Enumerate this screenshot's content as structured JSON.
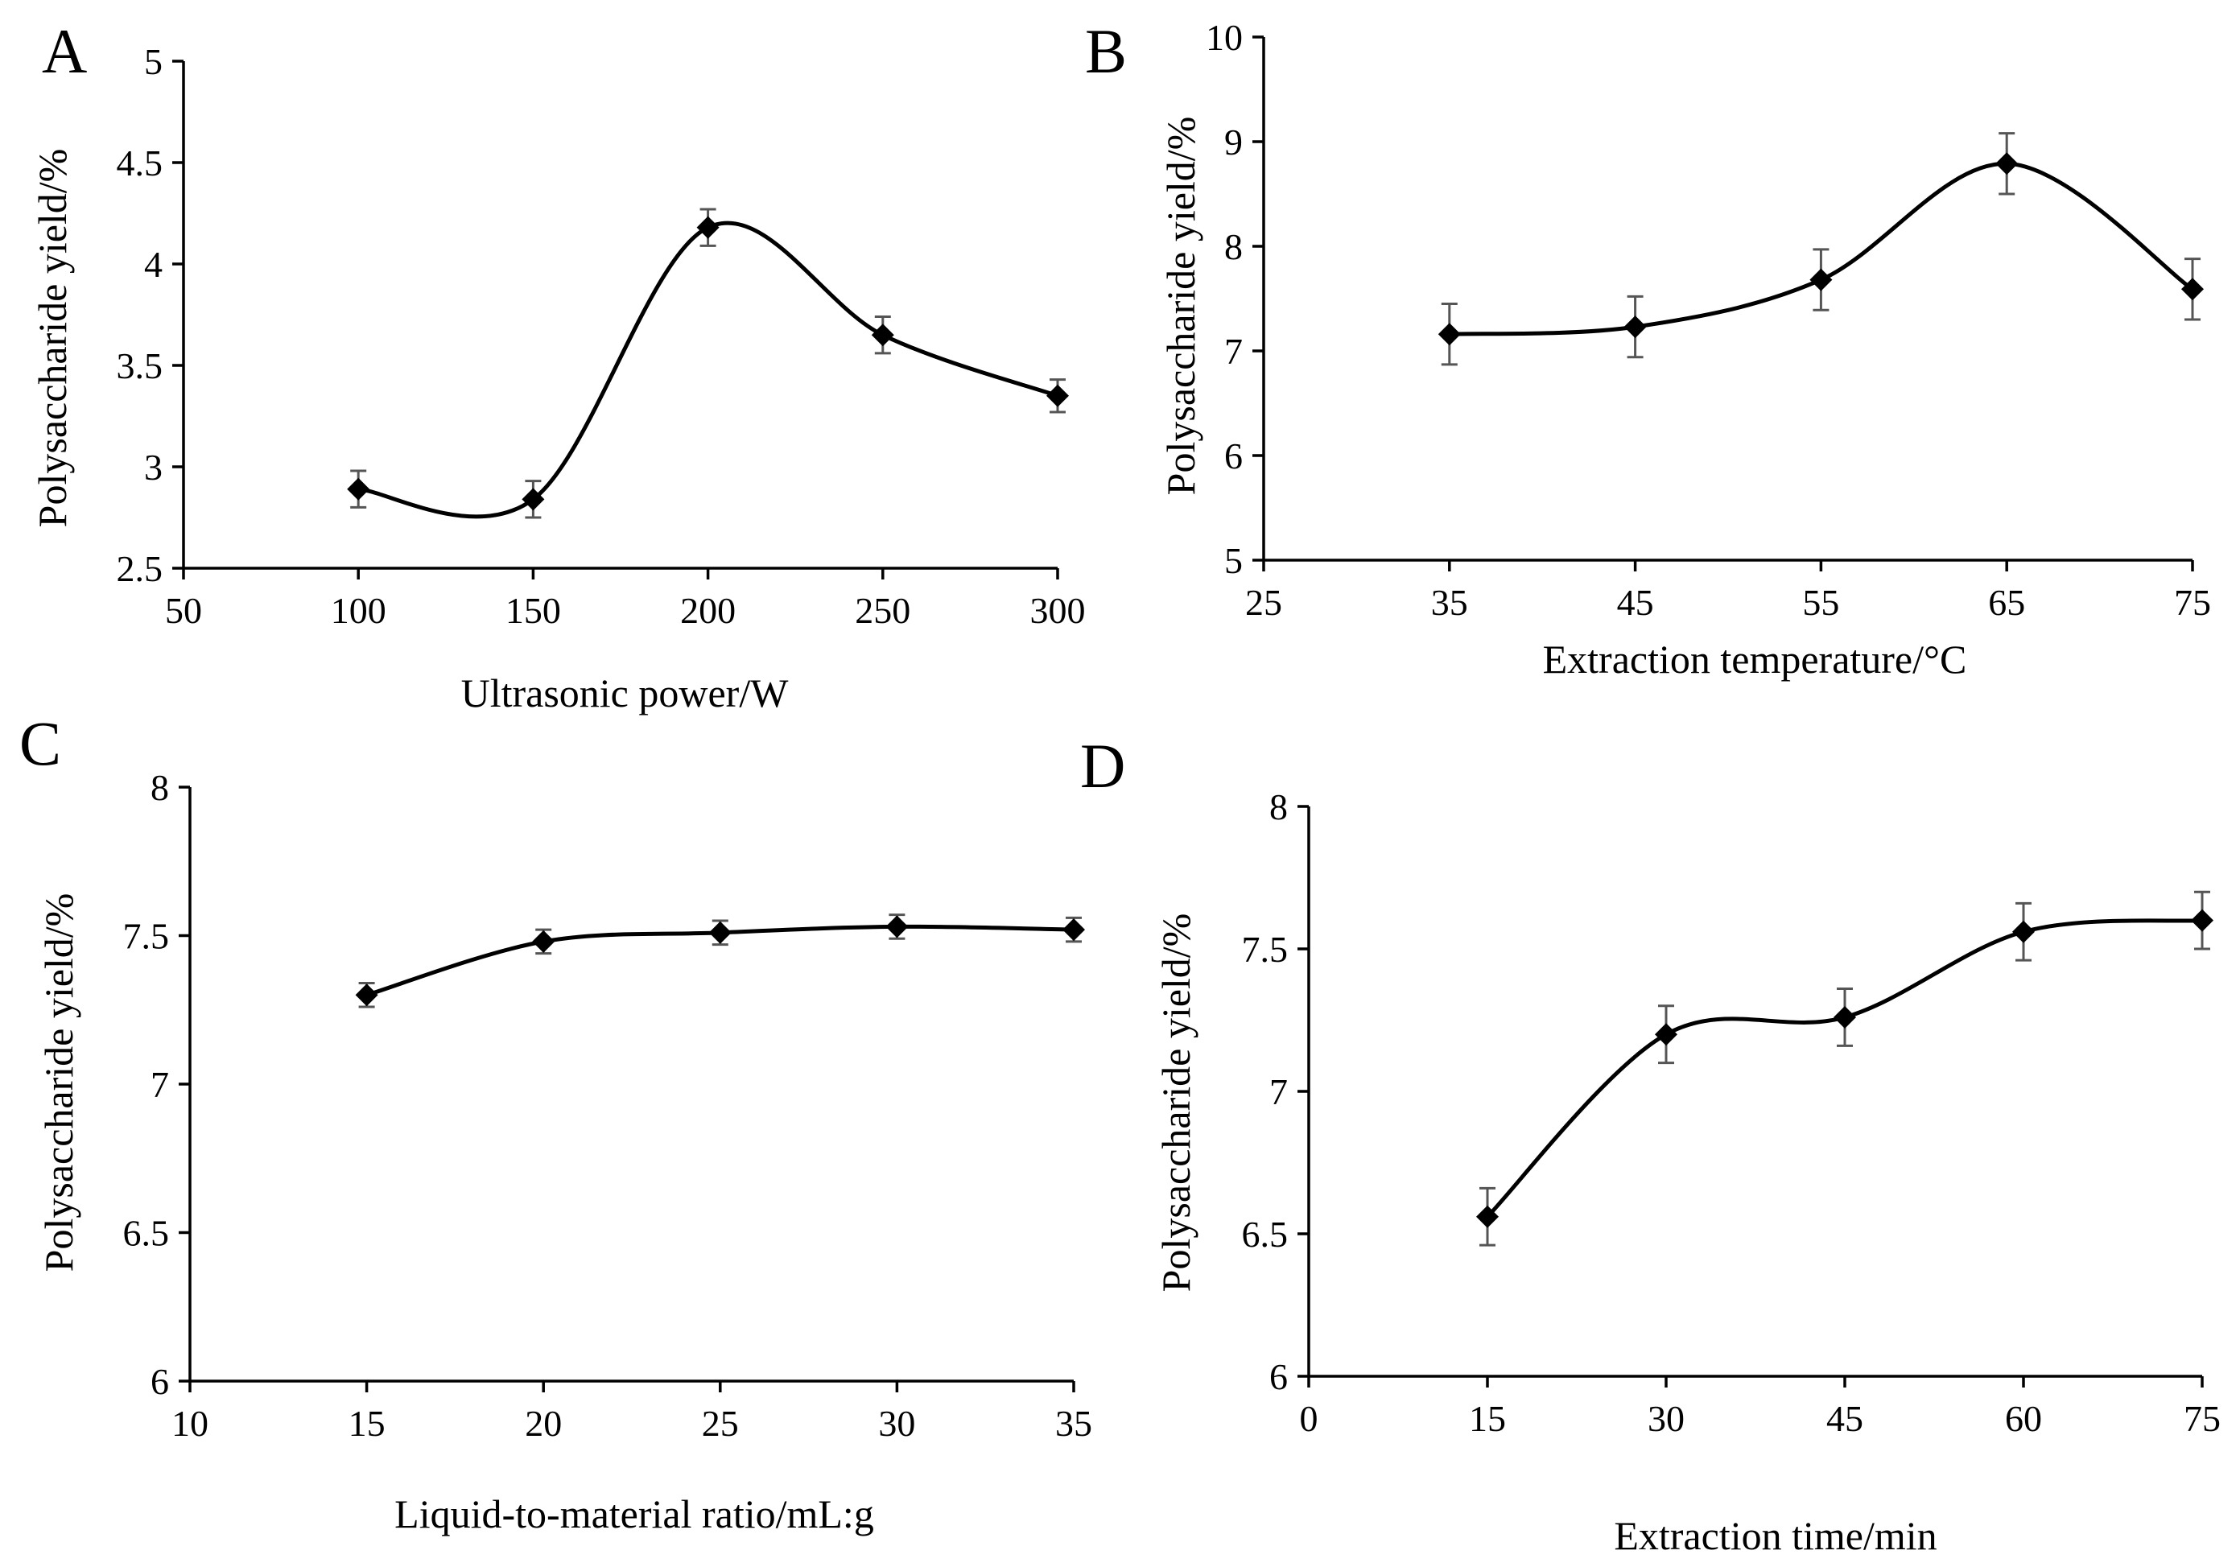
{
  "chart_data": [
    {
      "panel": "A",
      "type": "line",
      "title": "",
      "xlabel": "Ultrasonic power/W",
      "ylabel": "Polysaccharide yield/%",
      "xlim": [
        50,
        300
      ],
      "ylim": [
        2.5,
        5
      ],
      "xticks": [
        50,
        100,
        150,
        200,
        250,
        300
      ],
      "yticks": [
        2.5,
        3,
        3.5,
        4,
        4.5,
        5
      ],
      "x": [
        100,
        150,
        200,
        250,
        300
      ],
      "values": [
        2.89,
        2.84,
        4.18,
        3.65,
        3.35
      ],
      "errors": [
        0.09,
        0.09,
        0.09,
        0.09,
        0.08
      ],
      "smooth": true,
      "marker": "diamond"
    },
    {
      "panel": "B",
      "type": "line",
      "title": "",
      "xlabel": "Extraction temperature/°C",
      "ylabel": "Polysaccharide yield/%",
      "xlim": [
        25,
        75
      ],
      "ylim": [
        5,
        10
      ],
      "xticks": [
        25,
        35,
        45,
        55,
        65,
        75
      ],
      "yticks": [
        5,
        6,
        7,
        8,
        9,
        10
      ],
      "x": [
        35,
        45,
        55,
        65,
        75
      ],
      "values": [
        7.16,
        7.23,
        7.68,
        8.79,
        7.59
      ],
      "errors": [
        0.29,
        0.29,
        0.29,
        0.29,
        0.29
      ],
      "smooth": true,
      "marker": "diamond"
    },
    {
      "panel": "C",
      "type": "line",
      "title": "",
      "xlabel": "Liquid-to-material ratio/mL:g",
      "ylabel": "Polysaccharide yield/%",
      "xlim": [
        10,
        35
      ],
      "ylim": [
        6,
        8
      ],
      "xticks": [
        10,
        15,
        20,
        25,
        30,
        35
      ],
      "yticks": [
        6,
        6.5,
        7,
        7.5,
        8
      ],
      "x": [
        15,
        20,
        25,
        30,
        35
      ],
      "values": [
        7.3,
        7.48,
        7.51,
        7.53,
        7.52
      ],
      "errors": [
        0.04,
        0.04,
        0.04,
        0.04,
        0.04
      ],
      "smooth": true,
      "marker": "diamond"
    },
    {
      "panel": "D",
      "type": "line",
      "title": "",
      "xlabel": "Extraction time/min",
      "ylabel": "Polysaccharide yield/%",
      "xlim": [
        0,
        75
      ],
      "ylim": [
        6,
        8
      ],
      "xticks": [
        0,
        15,
        30,
        45,
        60,
        75
      ],
      "yticks": [
        6,
        6.5,
        7,
        7.5,
        8
      ],
      "x": [
        15,
        30,
        45,
        60,
        75
      ],
      "values": [
        6.56,
        7.2,
        7.26,
        7.56,
        7.6
      ],
      "errors": [
        0.1,
        0.1,
        0.1,
        0.1,
        0.1
      ],
      "smooth": true,
      "marker": "diamond"
    }
  ]
}
